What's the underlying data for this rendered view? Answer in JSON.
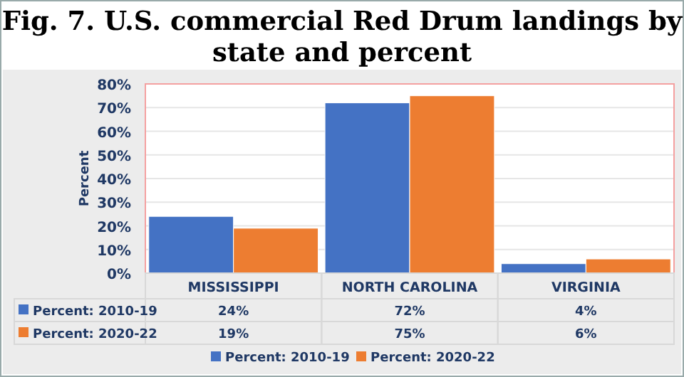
{
  "chart_data": {
    "type": "bar",
    "title": "Fig. 7. U.S. commercial Red Drum landings by state and percent",
    "ylabel": "Percent",
    "categories": [
      "MISSISSIPPI",
      "NORTH CAROLINA",
      "VIRGINIA"
    ],
    "series": [
      {
        "name": "Percent: 2010-19",
        "color": "#4472c4",
        "values": [
          24,
          72,
          4
        ],
        "value_labels": [
          "24%",
          "72%",
          "4%"
        ]
      },
      {
        "name": "Percent: 2020-22",
        "color": "#ed7d31",
        "values": [
          19,
          75,
          6
        ],
        "value_labels": [
          "19%",
          "75%",
          "6%"
        ]
      }
    ],
    "ylim": [
      0,
      80
    ],
    "yticks": [
      {
        "value": 0,
        "label": "0%"
      },
      {
        "value": 10,
        "label": "10%"
      },
      {
        "value": 20,
        "label": "20%"
      },
      {
        "value": 30,
        "label": "30%"
      },
      {
        "value": 40,
        "label": "40%"
      },
      {
        "value": 50,
        "label": "50%"
      },
      {
        "value": 60,
        "label": "60%"
      },
      {
        "value": 70,
        "label": "70%"
      },
      {
        "value": 80,
        "label": "80%"
      }
    ],
    "grid": "y",
    "legend": "bottom"
  }
}
